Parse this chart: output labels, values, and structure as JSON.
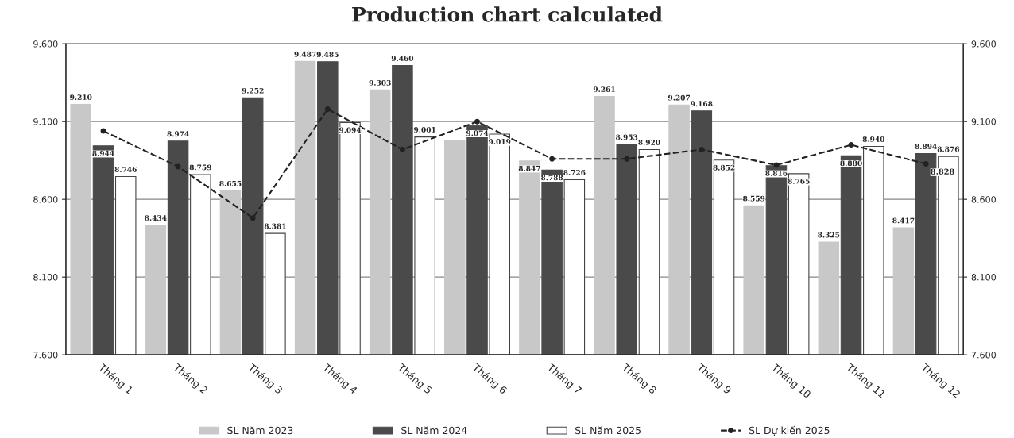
{
  "chart_data": {
    "type": "bar",
    "title": "Production chart calculated",
    "categories": [
      "Tháng 1",
      "Tháng 2",
      "Tháng 3",
      "Tháng 4",
      "Tháng 5",
      "Tháng 6",
      "Tháng 7",
      "Tháng 8",
      "Tháng 9",
      "Tháng 10",
      "Tháng 11",
      "Tháng 12"
    ],
    "series": [
      {
        "name": "SL Năm 2023",
        "color": "#c8c8c8",
        "values": [
          9.21,
          8.434,
          8.655,
          9.487,
          9.303,
          8.975,
          8.847,
          9.261,
          9.207,
          8.559,
          8.325,
          8.417
        ],
        "value_labels": [
          "9.210",
          "8.434",
          "8.655",
          "9.487",
          "9.303",
          null,
          "8.847",
          "9.261",
          "9.207",
          "8.559",
          "8.325",
          "8.417"
        ]
      },
      {
        "name": "SL Năm 2024",
        "color": "#4a4a4a",
        "values": [
          8.944,
          8.974,
          9.252,
          9.485,
          9.46,
          9.074,
          8.788,
          8.953,
          9.168,
          8.816,
          8.88,
          8.894
        ],
        "value_labels": [
          "8.944",
          "8.974",
          "9.252",
          "9.485",
          "9.460",
          "9.074",
          "8.788",
          "8.953",
          "9.168",
          "8.816",
          "8.880",
          "8.894"
        ]
      },
      {
        "name": "SL Năm 2025",
        "color": "#ffffff",
        "values": [
          8.746,
          8.759,
          8.381,
          9.094,
          9.001,
          9.019,
          8.726,
          8.92,
          8.852,
          8.765,
          8.94,
          8.876
        ],
        "value_labels": [
          "8.746",
          "8.759",
          "8.381",
          "9.094",
          "9.001",
          "9.019",
          "8.726",
          "8.920",
          "8.852",
          "8.765",
          "8.940",
          "8.876"
        ]
      },
      {
        "name": "SL Dự kiến 2025",
        "type": "line",
        "color": "#222222",
        "line_style": "dashed",
        "marker": "circle",
        "values": [
          9.04,
          8.81,
          8.48,
          9.18,
          8.92,
          9.1,
          8.86,
          8.86,
          8.92,
          8.82,
          8.95,
          8.828
        ],
        "value_labels": [
          null,
          null,
          null,
          null,
          null,
          null,
          null,
          null,
          null,
          null,
          null,
          "8.828"
        ]
      }
    ],
    "ylim": [
      7.6,
      9.6
    ],
    "yticks": [
      {
        "value": 7.6,
        "label": "7.600"
      },
      {
        "value": 8.1,
        "label": "8.100"
      },
      {
        "value": 8.6,
        "label": "8.600"
      },
      {
        "value": 9.1,
        "label": "9.100"
      },
      {
        "value": 9.6,
        "label": "9.600"
      }
    ],
    "y2lim": [
      7.6,
      9.6
    ],
    "y2ticks": [
      {
        "value": 7.6,
        "label": "7.600"
      },
      {
        "value": 8.1,
        "label": "8.100"
      },
      {
        "value": 8.6,
        "label": "8.600"
      },
      {
        "value": 9.1,
        "label": "9.100"
      },
      {
        "value": 9.6,
        "label": "9.600"
      }
    ],
    "grid": "y",
    "legend": "bottom"
  }
}
